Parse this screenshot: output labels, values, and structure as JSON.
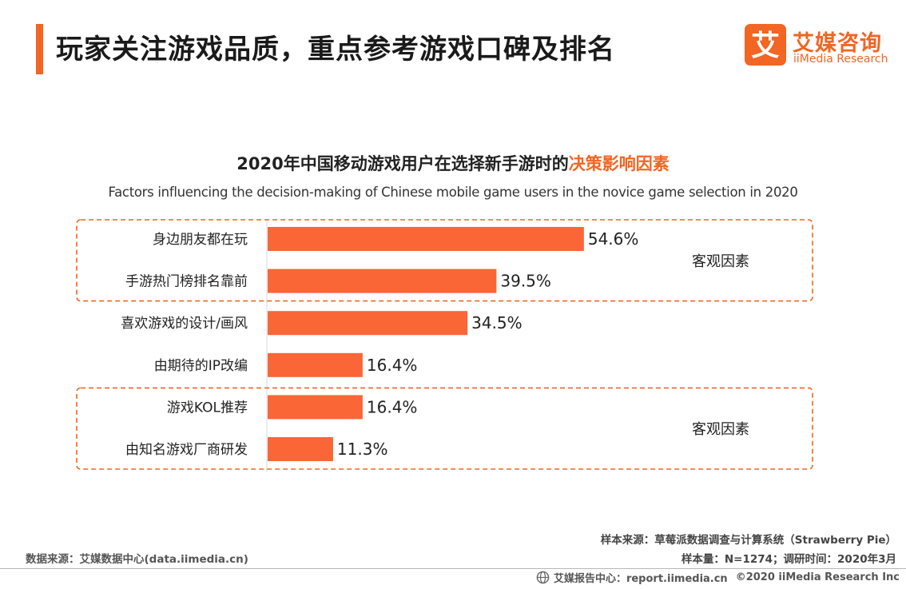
{
  "header": {
    "title": "玩家关注游戏品质，重点参考游戏口碑及排名",
    "logo_mark": "艾",
    "logo_cn": "艾媒咨询",
    "logo_en": "iiMedia Research"
  },
  "colors": {
    "accent": "#f26522",
    "bar": "#fa6636",
    "box_border": "#f26522"
  },
  "chart_data": {
    "type": "bar",
    "orientation": "horizontal",
    "title_prefix": "2020年中国移动游戏用户在选择新手游时的",
    "title_highlight": "决策影响因素",
    "subtitle": "Factors influencing the decision-making of Chinese mobile game users in the novice game selection in 2020",
    "categories": [
      "身边朋友都在玩",
      "手游热门榜排名靠前",
      "喜欢游戏的设计/画风",
      "由期待的IP改编",
      "游戏KOL推荐",
      "由知名游戏厂商研发"
    ],
    "values": [
      54.6,
      39.5,
      34.5,
      16.4,
      16.4,
      11.3
    ],
    "value_labels": [
      "54.6%",
      "39.5%",
      "34.5%",
      "16.4%",
      "16.4%",
      "11.3%"
    ],
    "unit": "%",
    "xlim": [
      0,
      80
    ],
    "groups": [
      {
        "label": "客观因素",
        "items": [
          0,
          1
        ]
      },
      {
        "label": "客观因素",
        "items": [
          4,
          5
        ]
      }
    ]
  },
  "footer": {
    "sample_source": "样本来源：草莓派数据调查与计算系统（Strawberry Pie）",
    "sample_size": "样本量：N=1274；调研时间：2020年3月",
    "data_source": "数据来源：艾媒数据中心(data.iimedia.cn)",
    "report_center": "艾媒报告中心：report.iimedia.cn",
    "copyright": "©2020 iiMedia Research Inc"
  }
}
